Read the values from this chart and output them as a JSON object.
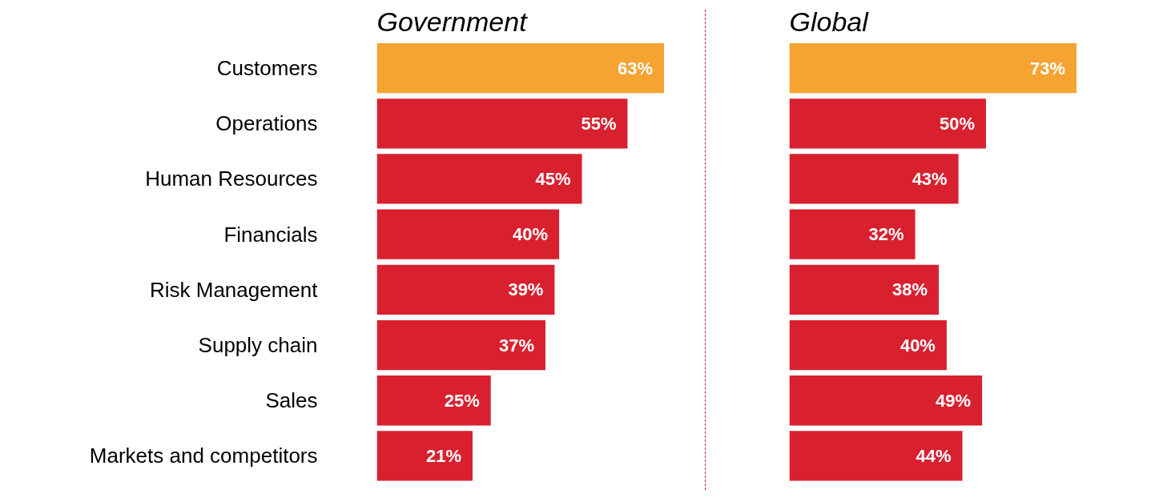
{
  "chart_data": [
    {
      "type": "bar",
      "orientation": "horizontal",
      "title": "Government",
      "categories": [
        "Customers",
        "Operations",
        "Human Resources",
        "Financials",
        "Risk Management",
        "Supply chain",
        "Sales",
        "Markets and competitors"
      ],
      "values": [
        63,
        55,
        45,
        40,
        39,
        37,
        25,
        21
      ],
      "value_labels": [
        "63%",
        "55%",
        "45%",
        "40%",
        "39%",
        "37%",
        "25%",
        "21%"
      ],
      "colors": [
        "#f5a331",
        "#d9202f",
        "#d9202f",
        "#d9202f",
        "#d9202f",
        "#d9202f",
        "#d9202f",
        "#d9202f"
      ],
      "tick_labels": "y"
    },
    {
      "type": "bar",
      "orientation": "horizontal",
      "title": "Global",
      "categories": [
        null,
        null,
        null,
        null,
        null,
        null,
        null,
        null
      ],
      "values": [
        73,
        50,
        43,
        32,
        38,
        40,
        49,
        44
      ],
      "value_labels": [
        "73%",
        "50%",
        "43%",
        "32%",
        "38%",
        "40%",
        "49%",
        "44%"
      ],
      "colors": [
        "#f5a331",
        "#d9202f",
        "#d9202f",
        "#d9202f",
        "#d9202f",
        "#d9202f",
        "#d9202f",
        "#d9202f"
      ],
      "tick_labels": false
    }
  ]
}
